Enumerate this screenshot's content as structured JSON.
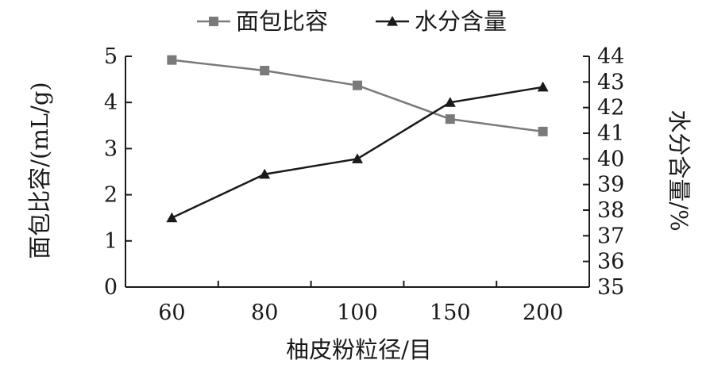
{
  "chart_data": {
    "type": "line",
    "categories": [
      "60",
      "80",
      "100",
      "150",
      "200"
    ],
    "xlabel": "柚皮粉粒径/目",
    "ylabel_left": "面包比容/(mL/g)",
    "ylabel_right": "水分含量/%",
    "ylim_left": [
      0,
      5
    ],
    "ylim_right": [
      35,
      44
    ],
    "yticks_left": [
      "0",
      "1",
      "2",
      "3",
      "4",
      "5"
    ],
    "yticks_right": [
      "35",
      "36",
      "37",
      "38",
      "39",
      "40",
      "41",
      "42",
      "43",
      "44"
    ],
    "grid": false,
    "legend_position": "top",
    "series": [
      {
        "name": "面包比容",
        "axis": "left",
        "marker": "square",
        "color": "#7a7a7a",
        "values": [
          4.92,
          4.69,
          4.37,
          3.64,
          3.37
        ]
      },
      {
        "name": "水分含量",
        "axis": "right",
        "marker": "triangle",
        "color": "#1a1a1a",
        "values": [
          37.7,
          39.4,
          40.0,
          42.2,
          42.8
        ]
      }
    ]
  }
}
